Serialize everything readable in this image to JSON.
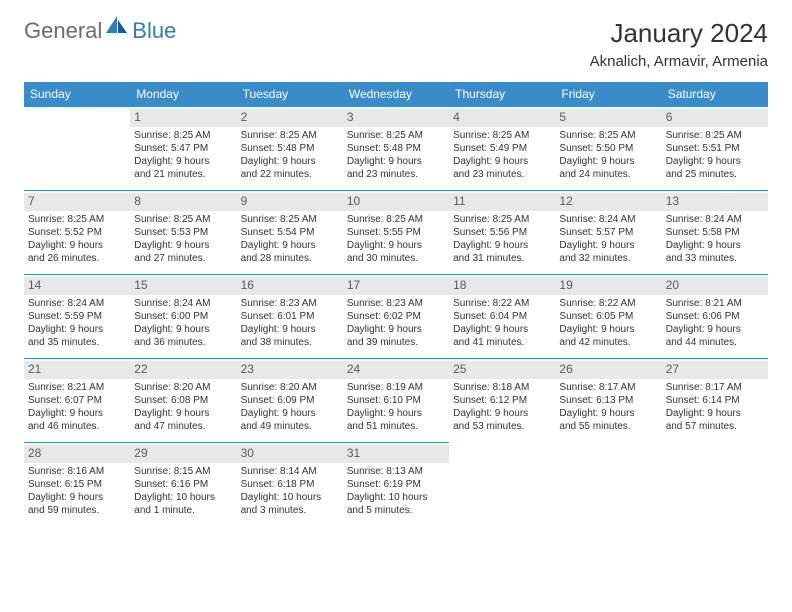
{
  "logo": {
    "part1": "General",
    "part2": "Blue"
  },
  "title": "January 2024",
  "subtitle": "Aknalich, Armavir, Armenia",
  "style": {
    "header_bg": "#3b8bc8",
    "header_fg": "#ffffff",
    "daynum_bg": "#e8e8e8",
    "daynum_fg": "#5a5a5a",
    "cell_border": "#3b8bc8",
    "body_fg": "#333333",
    "logo_gray": "#6b6b6b",
    "logo_blue": "#2f7bbf",
    "title_fontsize": 26,
    "subtitle_fontsize": 15,
    "header_fontsize": 12,
    "daynum_fontsize": 12,
    "cell_fontsize": 10
  },
  "weekdays": [
    "Sunday",
    "Monday",
    "Tuesday",
    "Wednesday",
    "Thursday",
    "Friday",
    "Saturday"
  ],
  "weeks": [
    [
      null,
      {
        "n": "1",
        "sr": "Sunrise: 8:25 AM",
        "ss": "Sunset: 5:47 PM",
        "d1": "Daylight: 9 hours",
        "d2": "and 21 minutes."
      },
      {
        "n": "2",
        "sr": "Sunrise: 8:25 AM",
        "ss": "Sunset: 5:48 PM",
        "d1": "Daylight: 9 hours",
        "d2": "and 22 minutes."
      },
      {
        "n": "3",
        "sr": "Sunrise: 8:25 AM",
        "ss": "Sunset: 5:48 PM",
        "d1": "Daylight: 9 hours",
        "d2": "and 23 minutes."
      },
      {
        "n": "4",
        "sr": "Sunrise: 8:25 AM",
        "ss": "Sunset: 5:49 PM",
        "d1": "Daylight: 9 hours",
        "d2": "and 23 minutes."
      },
      {
        "n": "5",
        "sr": "Sunrise: 8:25 AM",
        "ss": "Sunset: 5:50 PM",
        "d1": "Daylight: 9 hours",
        "d2": "and 24 minutes."
      },
      {
        "n": "6",
        "sr": "Sunrise: 8:25 AM",
        "ss": "Sunset: 5:51 PM",
        "d1": "Daylight: 9 hours",
        "d2": "and 25 minutes."
      }
    ],
    [
      {
        "n": "7",
        "sr": "Sunrise: 8:25 AM",
        "ss": "Sunset: 5:52 PM",
        "d1": "Daylight: 9 hours",
        "d2": "and 26 minutes."
      },
      {
        "n": "8",
        "sr": "Sunrise: 8:25 AM",
        "ss": "Sunset: 5:53 PM",
        "d1": "Daylight: 9 hours",
        "d2": "and 27 minutes."
      },
      {
        "n": "9",
        "sr": "Sunrise: 8:25 AM",
        "ss": "Sunset: 5:54 PM",
        "d1": "Daylight: 9 hours",
        "d2": "and 28 minutes."
      },
      {
        "n": "10",
        "sr": "Sunrise: 8:25 AM",
        "ss": "Sunset: 5:55 PM",
        "d1": "Daylight: 9 hours",
        "d2": "and 30 minutes."
      },
      {
        "n": "11",
        "sr": "Sunrise: 8:25 AM",
        "ss": "Sunset: 5:56 PM",
        "d1": "Daylight: 9 hours",
        "d2": "and 31 minutes."
      },
      {
        "n": "12",
        "sr": "Sunrise: 8:24 AM",
        "ss": "Sunset: 5:57 PM",
        "d1": "Daylight: 9 hours",
        "d2": "and 32 minutes."
      },
      {
        "n": "13",
        "sr": "Sunrise: 8:24 AM",
        "ss": "Sunset: 5:58 PM",
        "d1": "Daylight: 9 hours",
        "d2": "and 33 minutes."
      }
    ],
    [
      {
        "n": "14",
        "sr": "Sunrise: 8:24 AM",
        "ss": "Sunset: 5:59 PM",
        "d1": "Daylight: 9 hours",
        "d2": "and 35 minutes."
      },
      {
        "n": "15",
        "sr": "Sunrise: 8:24 AM",
        "ss": "Sunset: 6:00 PM",
        "d1": "Daylight: 9 hours",
        "d2": "and 36 minutes."
      },
      {
        "n": "16",
        "sr": "Sunrise: 8:23 AM",
        "ss": "Sunset: 6:01 PM",
        "d1": "Daylight: 9 hours",
        "d2": "and 38 minutes."
      },
      {
        "n": "17",
        "sr": "Sunrise: 8:23 AM",
        "ss": "Sunset: 6:02 PM",
        "d1": "Daylight: 9 hours",
        "d2": "and 39 minutes."
      },
      {
        "n": "18",
        "sr": "Sunrise: 8:22 AM",
        "ss": "Sunset: 6:04 PM",
        "d1": "Daylight: 9 hours",
        "d2": "and 41 minutes."
      },
      {
        "n": "19",
        "sr": "Sunrise: 8:22 AM",
        "ss": "Sunset: 6:05 PM",
        "d1": "Daylight: 9 hours",
        "d2": "and 42 minutes."
      },
      {
        "n": "20",
        "sr": "Sunrise: 8:21 AM",
        "ss": "Sunset: 6:06 PM",
        "d1": "Daylight: 9 hours",
        "d2": "and 44 minutes."
      }
    ],
    [
      {
        "n": "21",
        "sr": "Sunrise: 8:21 AM",
        "ss": "Sunset: 6:07 PM",
        "d1": "Daylight: 9 hours",
        "d2": "and 46 minutes."
      },
      {
        "n": "22",
        "sr": "Sunrise: 8:20 AM",
        "ss": "Sunset: 6:08 PM",
        "d1": "Daylight: 9 hours",
        "d2": "and 47 minutes."
      },
      {
        "n": "23",
        "sr": "Sunrise: 8:20 AM",
        "ss": "Sunset: 6:09 PM",
        "d1": "Daylight: 9 hours",
        "d2": "and 49 minutes."
      },
      {
        "n": "24",
        "sr": "Sunrise: 8:19 AM",
        "ss": "Sunset: 6:10 PM",
        "d1": "Daylight: 9 hours",
        "d2": "and 51 minutes."
      },
      {
        "n": "25",
        "sr": "Sunrise: 8:18 AM",
        "ss": "Sunset: 6:12 PM",
        "d1": "Daylight: 9 hours",
        "d2": "and 53 minutes."
      },
      {
        "n": "26",
        "sr": "Sunrise: 8:17 AM",
        "ss": "Sunset: 6:13 PM",
        "d1": "Daylight: 9 hours",
        "d2": "and 55 minutes."
      },
      {
        "n": "27",
        "sr": "Sunrise: 8:17 AM",
        "ss": "Sunset: 6:14 PM",
        "d1": "Daylight: 9 hours",
        "d2": "and 57 minutes."
      }
    ],
    [
      {
        "n": "28",
        "sr": "Sunrise: 8:16 AM",
        "ss": "Sunset: 6:15 PM",
        "d1": "Daylight: 9 hours",
        "d2": "and 59 minutes."
      },
      {
        "n": "29",
        "sr": "Sunrise: 8:15 AM",
        "ss": "Sunset: 6:16 PM",
        "d1": "Daylight: 10 hours",
        "d2": "and 1 minute."
      },
      {
        "n": "30",
        "sr": "Sunrise: 8:14 AM",
        "ss": "Sunset: 6:18 PM",
        "d1": "Daylight: 10 hours",
        "d2": "and 3 minutes."
      },
      {
        "n": "31",
        "sr": "Sunrise: 8:13 AM",
        "ss": "Sunset: 6:19 PM",
        "d1": "Daylight: 10 hours",
        "d2": "and 5 minutes."
      },
      null,
      null,
      null
    ]
  ]
}
